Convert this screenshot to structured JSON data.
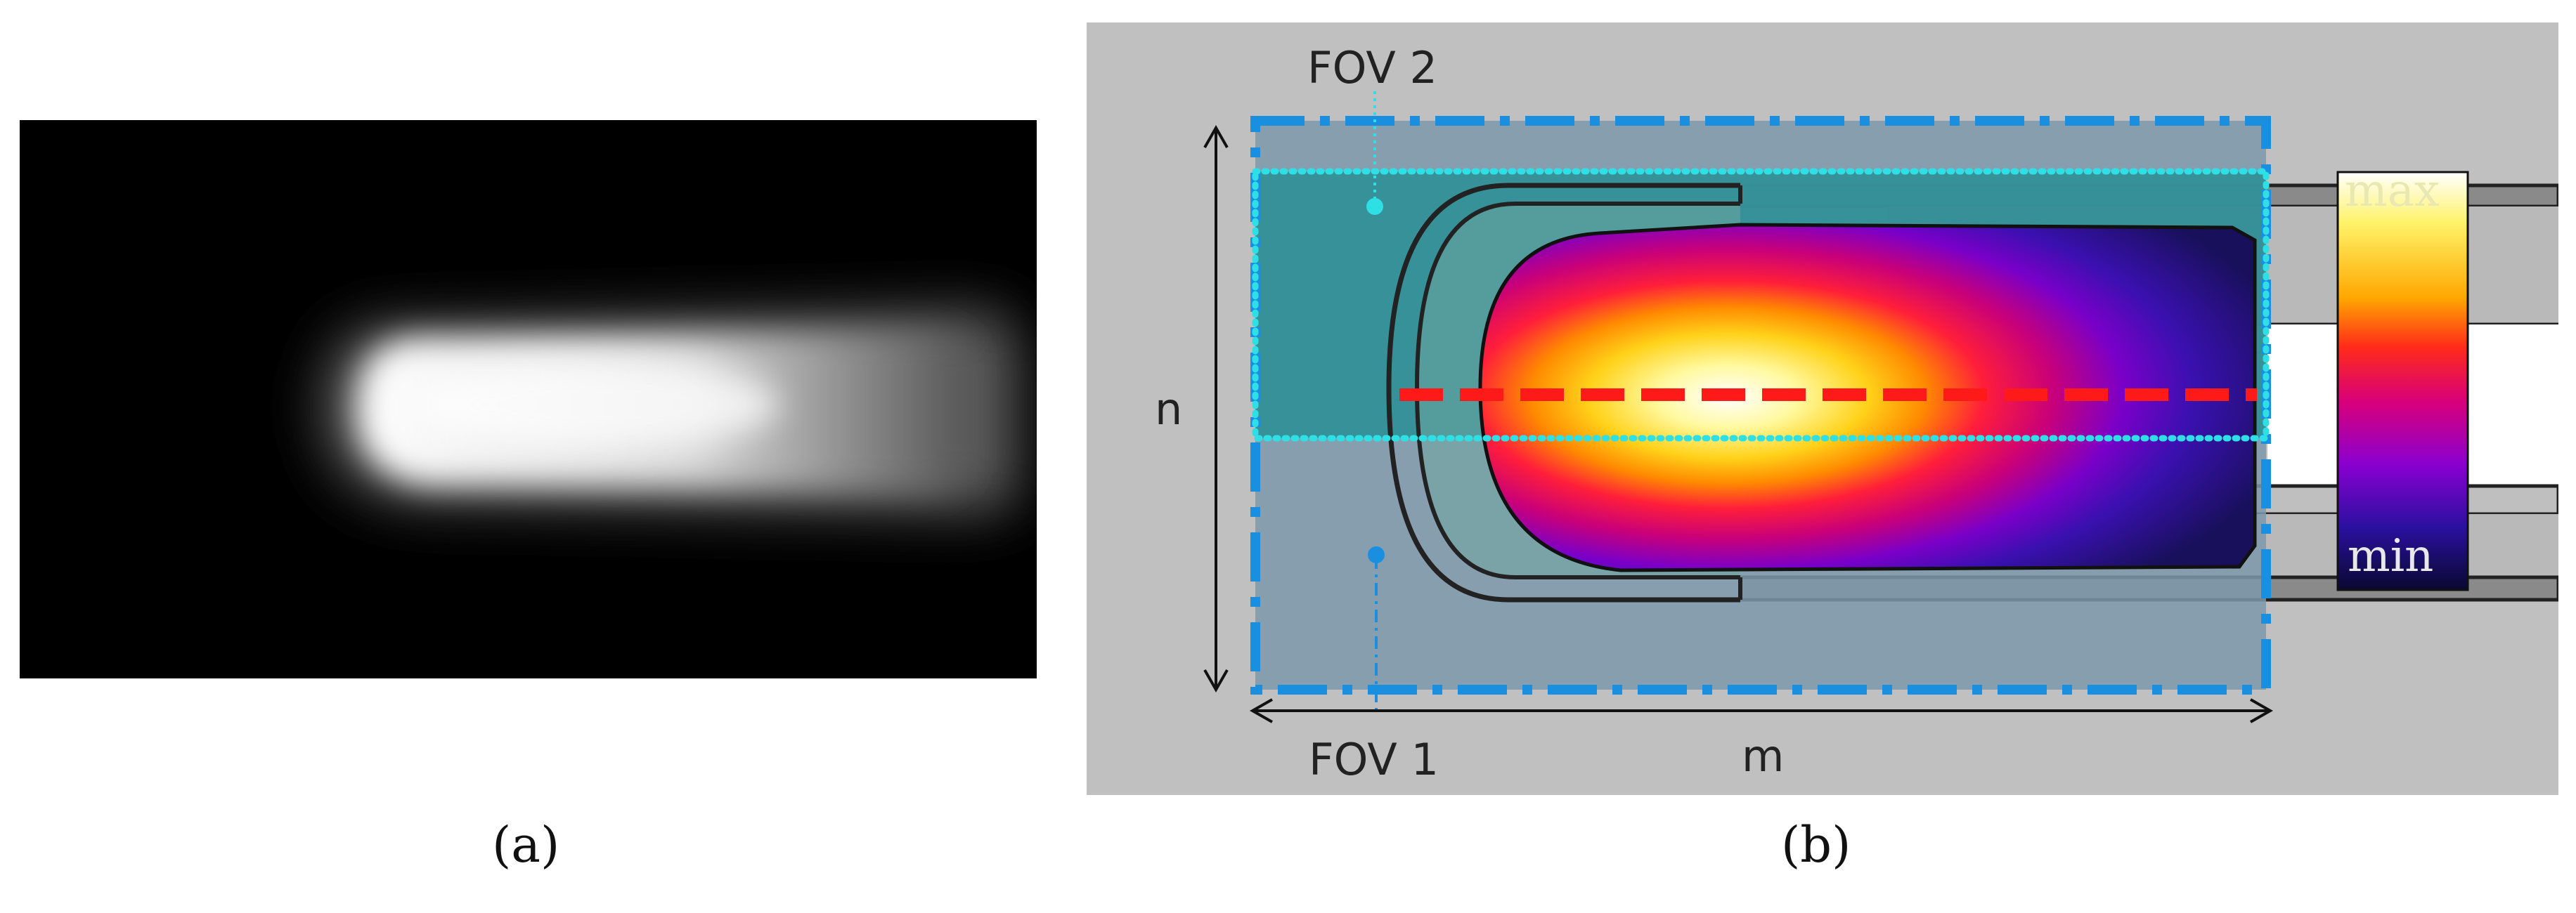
{
  "panel_a": {
    "caption": "(a)"
  },
  "panel_b": {
    "caption": "(b)",
    "fov2_label": "FOV 2",
    "fov1_label": "FOV 1",
    "height_label": "n",
    "width_label": "m",
    "colorbar": {
      "max_label": "max",
      "min_label": "min"
    },
    "colors": {
      "fov1_outline": "#1a8fe0",
      "fov2_outline": "#2ee0e6",
      "centerline": "#ff1a1a",
      "background": "#c0c0c0"
    }
  }
}
